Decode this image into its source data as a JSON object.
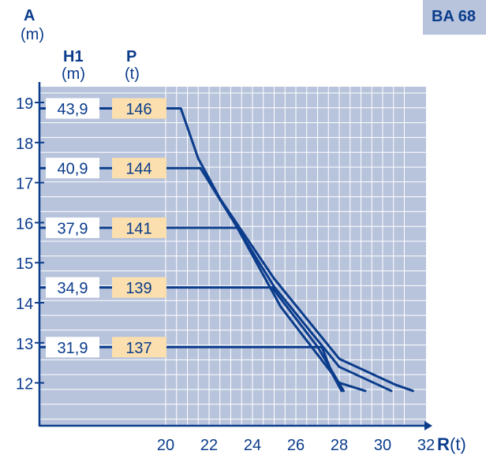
{
  "badge": "BA 68",
  "headers": {
    "a_letter": "A",
    "a_unit": "(m)",
    "h1_letter": "H1",
    "h1_unit": "(m)",
    "p_letter": "P",
    "p_unit": "(t)",
    "r_letter": "R",
    "r_unit": "(t)"
  },
  "colors": {
    "navy": "#0b3c8c",
    "grid_bg": "#b8c4dc",
    "grid_line": "#ffffff",
    "badge_bg": "#b8c4dc",
    "p_box": "#fbdfae",
    "h_box": "#ffffff"
  },
  "chart_data": {
    "type": "line",
    "xlabel": "R(t)",
    "ylabel": "A (m)",
    "x_ticks": [
      20,
      22,
      24,
      26,
      28,
      30,
      32
    ],
    "y_ticks": [
      12,
      13,
      14,
      15,
      16,
      17,
      18,
      19
    ],
    "xlim": [
      20,
      32
    ],
    "grid": true,
    "rows": [
      {
        "h1": "43,9",
        "p": "146"
      },
      {
        "h1": "40,9",
        "p": "144"
      },
      {
        "h1": "37,9",
        "p": "141"
      },
      {
        "h1": "34,9",
        "p": "139"
      },
      {
        "h1": "31,9",
        "p": "137"
      }
    ],
    "series": [
      {
        "points": [
          [
            20.7,
            18.5
          ],
          [
            21.5,
            17.6
          ],
          [
            22.5,
            16.6
          ],
          [
            25.0,
            14.6
          ],
          [
            28.0,
            12.6
          ],
          [
            30.6,
            11.95
          ],
          [
            31.4,
            11.8
          ]
        ]
      },
      {
        "points": [
          [
            21.6,
            17.5
          ],
          [
            22.7,
            16.4
          ],
          [
            25.0,
            14.4
          ],
          [
            28.0,
            12.4
          ],
          [
            30.4,
            11.8
          ]
        ]
      },
      {
        "points": [
          [
            23.3,
            15.8
          ],
          [
            25.3,
            13.9
          ],
          [
            28.0,
            12.0
          ],
          [
            29.2,
            11.8
          ]
        ]
      },
      {
        "points": [
          [
            24.9,
            14.6
          ],
          [
            27.0,
            12.9
          ],
          [
            28.2,
            11.8
          ]
        ]
      },
      {
        "points": [
          [
            27.2,
            12.7
          ],
          [
            27.7,
            12.2
          ],
          [
            28.1,
            11.8
          ]
        ]
      }
    ]
  }
}
